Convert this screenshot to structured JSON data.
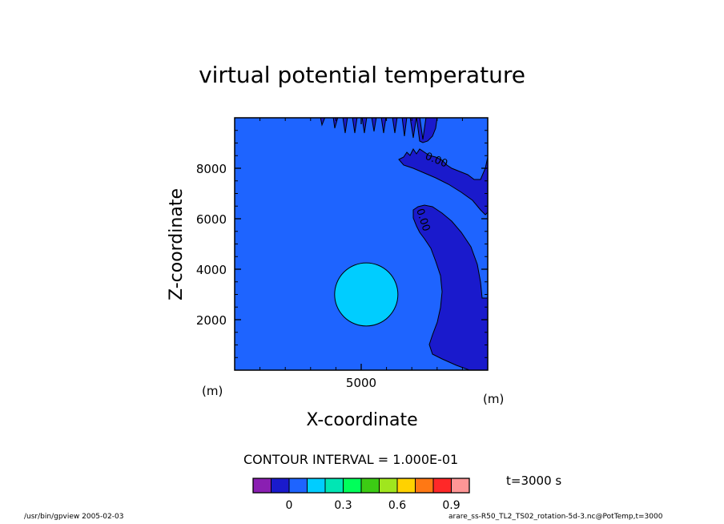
{
  "chart_data": {
    "type": "heatmap",
    "title": "virtual potential temperature",
    "xlabel": "X-coordinate",
    "ylabel": "Z-coordinate",
    "x_unit": "(m)",
    "y_unit": "(m)",
    "xlim": [
      0,
      10000
    ],
    "ylim": [
      0,
      10000
    ],
    "x_ticks": [
      5000
    ],
    "y_ticks": [
      2000,
      4000,
      6000,
      8000
    ],
    "contour_labels": [
      "0.00",
      "0.00"
    ],
    "contour_interval": "CONTOUR INTERVAL = 1.000E-01",
    "time_label": "t=3000 s",
    "colorbar": {
      "colors": [
        "#8a1fb2",
        "#1a1acc",
        "#1e64ff",
        "#00cdff",
        "#00e6b4",
        "#00ff5a",
        "#3ccc14",
        "#a0e61e",
        "#ffd200",
        "#ff7814",
        "#ff2828",
        "#ff9696"
      ],
      "tick_labels": [
        "0",
        "0.3",
        "0.6",
        "0.9"
      ]
    },
    "fields": {
      "background": "#1e64ff",
      "negative": "#1a1acc",
      "bubble": "#00cdff"
    },
    "bubble": {
      "x_center": 5200,
      "z_center": 3000,
      "radius": 1250
    }
  },
  "footer": {
    "left": "/usr/bin/gpview  2005-02-03",
    "right": "arare_ss-R50_TL2_TS02_rotation-5d-3.nc@PotTemp,t=3000"
  }
}
